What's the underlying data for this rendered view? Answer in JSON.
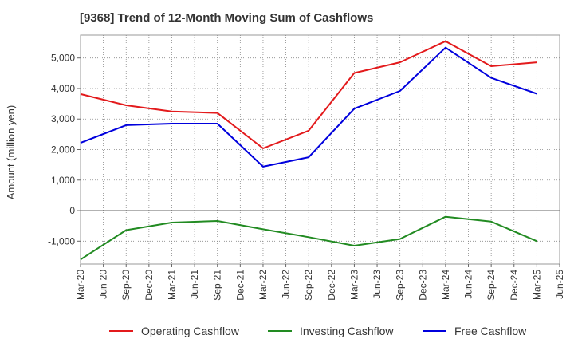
{
  "title": "[9368]  Trend of 12-Month Moving Sum of Cashflows",
  "chart_data": {
    "type": "line",
    "title": "[9368]  Trend of 12-Month Moving Sum of Cashflows",
    "xlabel": "",
    "ylabel": "Amount (million yen)",
    "x": [
      "Mar-20",
      "Jun-20",
      "Sep-20",
      "Dec-20",
      "Mar-21",
      "Jun-21",
      "Sep-21",
      "Dec-21",
      "Mar-22",
      "Jun-22",
      "Sep-22",
      "Dec-22",
      "Mar-23",
      "Jun-23",
      "Sep-23",
      "Dec-23",
      "Mar-24",
      "Jun-24",
      "Sep-24",
      "Dec-24",
      "Mar-25",
      "Jun-25"
    ],
    "ylim": [
      -1750,
      5750
    ],
    "yticks": [
      -1000,
      0,
      1000,
      2000,
      3000,
      4000,
      5000
    ],
    "ytick_labels": [
      "-1,000",
      "0",
      "1,000",
      "2,000",
      "3,000",
      "4,000",
      "5,000"
    ],
    "grid": true,
    "legend_position": "bottom",
    "series": [
      {
        "name": "Operating Cashflow",
        "color": "#e31a1c",
        "values": [
          3820,
          null,
          3450,
          null,
          3250,
          null,
          3200,
          null,
          2040,
          null,
          2620,
          null,
          4510,
          null,
          4860,
          null,
          5550,
          null,
          4730,
          null,
          4860,
          null
        ]
      },
      {
        "name": "Investing Cashflow",
        "color": "#228b22",
        "values": [
          -1600,
          null,
          -640,
          null,
          -390,
          null,
          -340,
          null,
          -610,
          null,
          -870,
          null,
          -1150,
          null,
          -930,
          null,
          -200,
          null,
          -360,
          null,
          -1000,
          null
        ]
      },
      {
        "name": "Free Cashflow",
        "color": "#0000dd",
        "values": [
          2220,
          null,
          2800,
          null,
          2850,
          null,
          2850,
          null,
          1440,
          null,
          1750,
          null,
          3340,
          null,
          3920,
          null,
          5340,
          null,
          4350,
          null,
          3830,
          null
        ]
      }
    ]
  }
}
